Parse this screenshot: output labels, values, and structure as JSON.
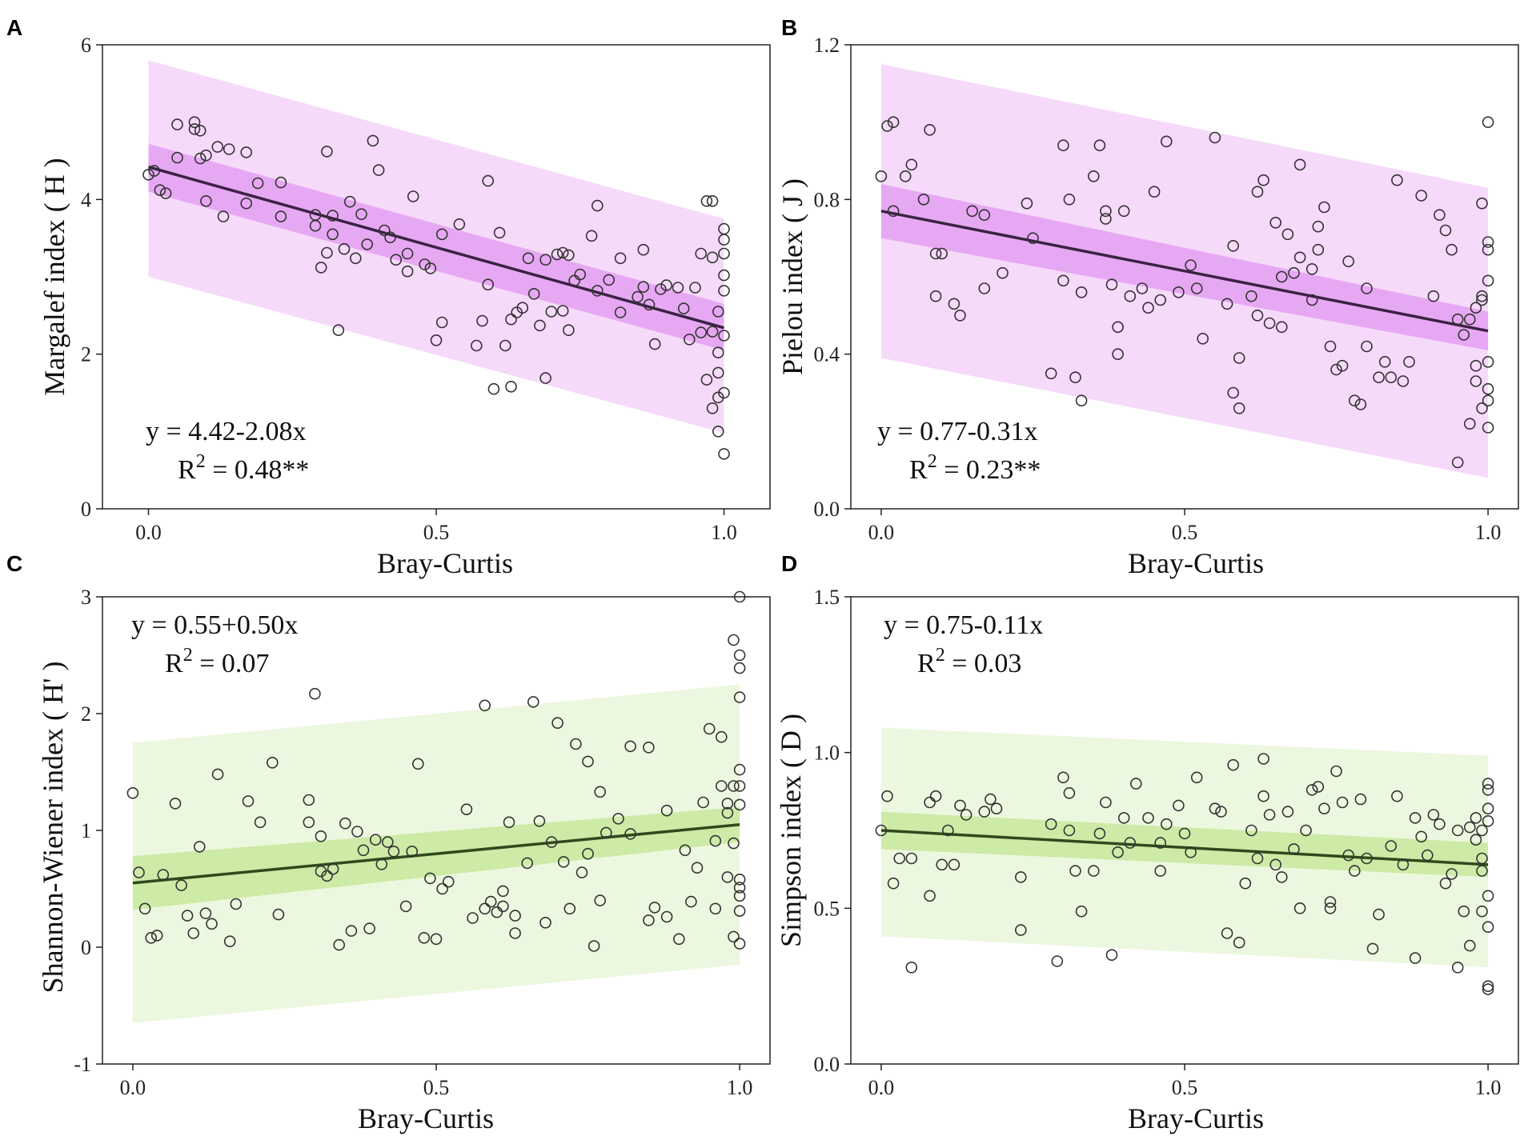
{
  "figure": {
    "panels": [
      {
        "letter": "A",
        "eq": "y = 4.42-2.08x",
        "r2_prefix": "R",
        "r2_exp": "2",
        "r2_value": " = 0.48**"
      },
      {
        "letter": "B",
        "eq": "y = 0.77-0.31x",
        "r2_prefix": "R",
        "r2_exp": "2",
        "r2_value": " = 0.23**"
      },
      {
        "letter": "C",
        "eq": "y = 0.55+0.50x",
        "r2_prefix": "R",
        "r2_exp": "2",
        "r2_value": " = 0.07"
      },
      {
        "letter": "D",
        "eq": "y = 0.75-0.11x",
        "r2_prefix": "R",
        "r2_exp": "2",
        "r2_value": " = 0.03"
      }
    ]
  },
  "colors": {
    "purple_ci": "#e7a8f3",
    "purple_pi": "#f6dafa",
    "purple_line": "#3b2244",
    "green_ci": "#cdeba6",
    "green_pi": "#ecf7df",
    "green_line": "#2f4a1d",
    "point_stroke": "#333333"
  },
  "chart_data": [
    {
      "type": "scatter",
      "panel": "A",
      "title": "",
      "xlabel": "Bray-Curtis",
      "ylabel": "Margalef index ( H )",
      "xlim": [
        -0.08,
        1.08
      ],
      "ylim": [
        0,
        6
      ],
      "xticks": [
        0.0,
        0.5,
        1.0
      ],
      "xtick_labels": [
        "0.0",
        "0.5",
        "1.0"
      ],
      "yticks": [
        0,
        2,
        4,
        6
      ],
      "ytick_labels": [
        "0",
        "2",
        "4",
        "6"
      ],
      "fit": {
        "intercept": 4.42,
        "slope": -2.08
      },
      "ci": {
        "left": [
          4.1,
          4.72
        ],
        "right": [
          2.05,
          2.65
        ]
      },
      "pi": {
        "left": [
          3.0,
          5.8
        ],
        "right": [
          0.98,
          3.75
        ]
      },
      "theme": "purple",
      "x": [
        0.0,
        0.01,
        0.02,
        0.03,
        0.05,
        0.05,
        0.08,
        0.08,
        0.09,
        0.09,
        0.1,
        0.1,
        0.12,
        0.13,
        0.14,
        0.17,
        0.17,
        0.19,
        0.23,
        0.23,
        0.29,
        0.29,
        0.3,
        0.31,
        0.31,
        0.32,
        0.32,
        0.33,
        0.34,
        0.35,
        0.36,
        0.37,
        0.38,
        0.39,
        0.4,
        0.41,
        0.42,
        0.43,
        0.45,
        0.45,
        0.46,
        0.48,
        0.49,
        0.5,
        0.51,
        0.51,
        0.54,
        0.57,
        0.58,
        0.59,
        0.59,
        0.6,
        0.61,
        0.62,
        0.63,
        0.63,
        0.64,
        0.65,
        0.66,
        0.67,
        0.68,
        0.69,
        0.69,
        0.7,
        0.71,
        0.72,
        0.72,
        0.73,
        0.73,
        0.74,
        0.75,
        0.77,
        0.78,
        0.78,
        0.8,
        0.82,
        0.82,
        0.85,
        0.86,
        0.86,
        0.87,
        0.88,
        0.89,
        0.9,
        0.92,
        0.93,
        0.94,
        0.95,
        0.96,
        0.96,
        0.97,
        0.97,
        0.98,
        0.98,
        0.98,
        0.98,
        0.99,
        0.99,
        0.99,
        0.99,
        0.99,
        1.0,
        1.0,
        1.0,
        1.0,
        1.0,
        1.0,
        1.0,
        1.0
      ],
      "y": [
        4.32,
        4.37,
        4.12,
        4.08,
        4.97,
        4.54,
        5.0,
        4.91,
        4.89,
        4.53,
        3.98,
        4.57,
        4.68,
        3.78,
        4.65,
        4.61,
        3.95,
        4.21,
        3.78,
        4.22,
        3.66,
        3.8,
        3.12,
        3.31,
        4.62,
        3.55,
        3.79,
        2.31,
        3.36,
        3.97,
        3.24,
        3.81,
        3.42,
        4.76,
        4.38,
        3.6,
        3.51,
        3.22,
        3.3,
        3.07,
        4.04,
        3.16,
        3.11,
        2.18,
        3.55,
        2.41,
        3.68,
        2.11,
        2.43,
        4.24,
        2.9,
        1.55,
        3.57,
        2.11,
        2.45,
        1.58,
        2.54,
        2.6,
        3.24,
        2.78,
        2.37,
        3.22,
        1.69,
        2.55,
        3.29,
        3.31,
        2.56,
        2.31,
        3.28,
        2.95,
        3.03,
        3.53,
        3.92,
        2.82,
        2.96,
        3.24,
        2.54,
        2.74,
        2.87,
        3.35,
        2.64,
        2.13,
        2.84,
        2.89,
        2.86,
        2.59,
        2.19,
        2.86,
        2.28,
        3.3,
        1.67,
        3.98,
        3.98,
        3.25,
        2.29,
        1.3,
        1.0,
        2.55,
        2.02,
        1.76,
        1.44,
        3.62,
        3.48,
        3.3,
        3.02,
        2.82,
        2.24,
        1.5,
        0.71
      ]
    },
    {
      "type": "scatter",
      "panel": "B",
      "title": "",
      "xlabel": "Bray-Curtis",
      "ylabel": "Pielou index ( J )",
      "xlim": [
        -0.05,
        1.05
      ],
      "ylim": [
        0,
        1.2
      ],
      "xticks": [
        0.0,
        0.5,
        1.0
      ],
      "xtick_labels": [
        "0.0",
        "0.5",
        "1.0"
      ],
      "yticks": [
        0.0,
        0.4,
        0.8,
        1.2
      ],
      "ytick_labels": [
        "0.0",
        "0.4",
        "0.8",
        "1.2"
      ],
      "fit": {
        "intercept": 0.77,
        "slope": -0.31
      },
      "ci": {
        "left": [
          0.7,
          0.84
        ],
        "right": [
          0.41,
          0.51
        ]
      },
      "pi": {
        "left": [
          0.39,
          1.15
        ],
        "right": [
          0.08,
          0.83
        ]
      },
      "theme": "purple",
      "x": [
        0.0,
        0.01,
        0.02,
        0.02,
        0.04,
        0.05,
        0.07,
        0.08,
        0.09,
        0.09,
        0.1,
        0.12,
        0.13,
        0.15,
        0.17,
        0.17,
        0.2,
        0.24,
        0.25,
        0.28,
        0.3,
        0.3,
        0.31,
        0.32,
        0.33,
        0.33,
        0.35,
        0.36,
        0.37,
        0.37,
        0.38,
        0.39,
        0.39,
        0.4,
        0.41,
        0.43,
        0.44,
        0.45,
        0.46,
        0.47,
        0.49,
        0.51,
        0.52,
        0.53,
        0.55,
        0.57,
        0.58,
        0.58,
        0.59,
        0.59,
        0.61,
        0.62,
        0.62,
        0.63,
        0.64,
        0.65,
        0.66,
        0.66,
        0.67,
        0.68,
        0.69,
        0.69,
        0.71,
        0.71,
        0.72,
        0.72,
        0.73,
        0.74,
        0.75,
        0.76,
        0.77,
        0.78,
        0.79,
        0.8,
        0.8,
        0.82,
        0.83,
        0.84,
        0.85,
        0.86,
        0.87,
        0.89,
        0.91,
        0.92,
        0.93,
        0.94,
        0.95,
        0.95,
        0.96,
        0.97,
        0.97,
        0.98,
        0.98,
        0.98,
        0.99,
        0.99,
        0.99,
        0.99,
        1.0,
        1.0,
        1.0,
        1.0,
        1.0,
        1.0,
        1.0,
        1.0
      ],
      "y": [
        0.86,
        0.99,
        0.77,
        1.0,
        0.86,
        0.89,
        0.8,
        0.98,
        0.55,
        0.66,
        0.66,
        0.53,
        0.5,
        0.77,
        0.57,
        0.76,
        0.61,
        0.79,
        0.7,
        0.35,
        0.94,
        0.59,
        0.8,
        0.34,
        0.28,
        0.56,
        0.86,
        0.94,
        0.77,
        0.75,
        0.58,
        0.4,
        0.47,
        0.77,
        0.55,
        0.57,
        0.52,
        0.82,
        0.54,
        0.95,
        0.56,
        0.63,
        0.57,
        0.44,
        0.96,
        0.53,
        0.3,
        0.68,
        0.39,
        0.26,
        0.55,
        0.82,
        0.5,
        0.85,
        0.48,
        0.74,
        0.47,
        0.6,
        0.71,
        0.61,
        0.89,
        0.65,
        0.54,
        0.62,
        0.73,
        0.67,
        0.78,
        0.42,
        0.36,
        0.37,
        0.64,
        0.28,
        0.27,
        0.57,
        0.42,
        0.34,
        0.38,
        0.34,
        0.85,
        0.33,
        0.38,
        0.81,
        0.55,
        0.76,
        0.72,
        0.67,
        0.49,
        0.12,
        0.45,
        0.22,
        0.49,
        0.33,
        0.37,
        0.52,
        0.54,
        0.26,
        0.79,
        0.55,
        1.0,
        0.69,
        0.67,
        0.59,
        0.38,
        0.31,
        0.28,
        0.21
      ]
    },
    {
      "type": "scatter",
      "panel": "C",
      "title": "",
      "xlabel": "Bray-Curtis",
      "ylabel": "Shannon-Wiener index ( H' )",
      "xlim": [
        -0.05,
        1.05
      ],
      "ylim": [
        -1,
        3
      ],
      "xticks": [
        0.0,
        0.5,
        1.0
      ],
      "xtick_labels": [
        "0.0",
        "0.5",
        "1.0"
      ],
      "yticks": [
        -1,
        0,
        1,
        2,
        3
      ],
      "ytick_labels": [
        "-1",
        "0",
        "1",
        "2",
        "3"
      ],
      "fit": {
        "intercept": 0.55,
        "slope": 0.5
      },
      "ci": {
        "left": [
          0.32,
          0.78
        ],
        "right": [
          0.9,
          1.2
        ]
      },
      "pi": {
        "left": [
          -0.65,
          1.75
        ],
        "right": [
          -0.15,
          2.25
        ]
      },
      "theme": "green",
      "x": [
        0.0,
        0.01,
        0.02,
        0.03,
        0.04,
        0.05,
        0.07,
        0.08,
        0.09,
        0.1,
        0.11,
        0.12,
        0.13,
        0.14,
        0.16,
        0.17,
        0.19,
        0.21,
        0.23,
        0.24,
        0.29,
        0.29,
        0.3,
        0.31,
        0.31,
        0.32,
        0.33,
        0.34,
        0.35,
        0.36,
        0.37,
        0.38,
        0.39,
        0.4,
        0.41,
        0.42,
        0.43,
        0.45,
        0.46,
        0.47,
        0.48,
        0.49,
        0.5,
        0.51,
        0.52,
        0.55,
        0.56,
        0.58,
        0.58,
        0.59,
        0.6,
        0.61,
        0.61,
        0.62,
        0.63,
        0.63,
        0.65,
        0.66,
        0.67,
        0.68,
        0.69,
        0.7,
        0.71,
        0.72,
        0.73,
        0.74,
        0.75,
        0.75,
        0.76,
        0.77,
        0.77,
        0.78,
        0.8,
        0.82,
        0.82,
        0.85,
        0.85,
        0.86,
        0.88,
        0.88,
        0.9,
        0.91,
        0.92,
        0.93,
        0.94,
        0.95,
        0.96,
        0.96,
        0.97,
        0.97,
        0.98,
        0.98,
        0.98,
        0.99,
        0.99,
        0.99,
        0.99,
        1.0,
        1.0,
        1.0,
        1.0,
        1.0,
        1.0,
        1.0,
        1.0,
        1.0,
        1.0,
        1.0,
        1.0
      ],
      "y": [
        1.32,
        0.64,
        0.33,
        0.08,
        0.1,
        0.62,
        1.23,
        0.53,
        0.27,
        0.12,
        0.86,
        0.29,
        0.2,
        1.48,
        0.05,
        0.37,
        1.25,
        1.07,
        1.58,
        0.28,
        1.26,
        1.07,
        2.17,
        0.95,
        0.65,
        0.61,
        0.67,
        0.02,
        1.06,
        0.14,
        0.99,
        0.83,
        0.16,
        0.92,
        0.71,
        0.9,
        0.82,
        0.35,
        0.82,
        1.57,
        0.08,
        0.59,
        0.07,
        0.5,
        0.56,
        1.18,
        0.25,
        2.07,
        0.33,
        0.39,
        0.3,
        0.35,
        0.48,
        1.07,
        0.12,
        0.27,
        0.72,
        2.1,
        1.08,
        0.21,
        0.9,
        1.92,
        0.73,
        0.33,
        1.74,
        0.64,
        0.8,
        1.59,
        0.01,
        1.33,
        0.4,
        0.98,
        1.1,
        0.97,
        1.72,
        0.23,
        1.71,
        0.34,
        0.26,
        1.17,
        0.07,
        0.83,
        0.39,
        0.68,
        1.24,
        1.87,
        0.91,
        0.33,
        1.8,
        1.38,
        0.6,
        1.23,
        1.15,
        2.63,
        1.38,
        0.89,
        0.09,
        1.52,
        1.38,
        1.22,
        0.58,
        0.51,
        0.44,
        0.31,
        0.03,
        2.5,
        2.39,
        2.14,
        3.0
      ]
    },
    {
      "type": "scatter",
      "panel": "D",
      "title": "",
      "xlabel": "Bray-Curtis",
      "ylabel": "Simpson index ( D )",
      "xlim": [
        -0.05,
        1.05
      ],
      "ylim": [
        0,
        1.5
      ],
      "xticks": [
        0.0,
        0.5,
        1.0
      ],
      "xtick_labels": [
        "0.0",
        "0.5",
        "1.0"
      ],
      "yticks": [
        0.0,
        0.5,
        1.0,
        1.5
      ],
      "ytick_labels": [
        "0.0",
        "0.5",
        "1.0",
        "1.5"
      ],
      "fit": {
        "intercept": 0.75,
        "slope": -0.11
      },
      "ci": {
        "left": [
          0.69,
          0.81
        ],
        "right": [
          0.6,
          0.71
        ]
      },
      "pi": {
        "left": [
          0.41,
          1.08
        ],
        "right": [
          0.31,
          0.99
        ]
      },
      "theme": "green",
      "x": [
        0.0,
        0.01,
        0.02,
        0.03,
        0.05,
        0.05,
        0.08,
        0.08,
        0.09,
        0.1,
        0.11,
        0.12,
        0.13,
        0.14,
        0.17,
        0.18,
        0.19,
        0.23,
        0.23,
        0.28,
        0.29,
        0.3,
        0.31,
        0.31,
        0.32,
        0.33,
        0.35,
        0.36,
        0.37,
        0.38,
        0.39,
        0.4,
        0.41,
        0.42,
        0.44,
        0.46,
        0.46,
        0.47,
        0.49,
        0.5,
        0.51,
        0.52,
        0.55,
        0.56,
        0.57,
        0.58,
        0.59,
        0.6,
        0.61,
        0.62,
        0.63,
        0.63,
        0.64,
        0.65,
        0.66,
        0.67,
        0.68,
        0.69,
        0.7,
        0.71,
        0.72,
        0.73,
        0.74,
        0.74,
        0.75,
        0.76,
        0.77,
        0.78,
        0.79,
        0.8,
        0.81,
        0.82,
        0.84,
        0.85,
        0.86,
        0.88,
        0.88,
        0.89,
        0.9,
        0.91,
        0.92,
        0.93,
        0.94,
        0.95,
        0.95,
        0.96,
        0.97,
        0.97,
        0.98,
        0.98,
        0.99,
        0.99,
        0.99,
        0.99,
        1.0,
        1.0,
        1.0,
        1.0,
        1.0,
        1.0,
        1.0,
        1.0
      ],
      "y": [
        0.75,
        0.86,
        0.58,
        0.66,
        0.31,
        0.66,
        0.54,
        0.84,
        0.86,
        0.64,
        0.75,
        0.64,
        0.83,
        0.8,
        0.81,
        0.85,
        0.82,
        0.43,
        0.6,
        0.77,
        0.33,
        0.92,
        0.75,
        0.87,
        0.62,
        0.49,
        0.62,
        0.74,
        0.84,
        0.35,
        0.68,
        0.79,
        0.71,
        0.9,
        0.79,
        0.62,
        0.71,
        0.77,
        0.83,
        0.74,
        0.68,
        0.92,
        0.82,
        0.81,
        0.42,
        0.96,
        0.39,
        0.58,
        0.75,
        0.66,
        0.86,
        0.98,
        0.8,
        0.64,
        0.6,
        0.81,
        0.69,
        0.5,
        0.75,
        0.88,
        0.89,
        0.82,
        0.52,
        0.5,
        0.94,
        0.84,
        0.67,
        0.62,
        0.85,
        0.66,
        0.37,
        0.48,
        0.7,
        0.86,
        0.64,
        0.79,
        0.34,
        0.73,
        0.67,
        0.8,
        0.77,
        0.58,
        0.61,
        0.75,
        0.31,
        0.49,
        0.76,
        0.38,
        0.72,
        0.79,
        0.75,
        0.49,
        0.62,
        0.66,
        0.54,
        0.9,
        0.88,
        0.82,
        0.78,
        0.44,
        0.25,
        0.24
      ]
    }
  ]
}
